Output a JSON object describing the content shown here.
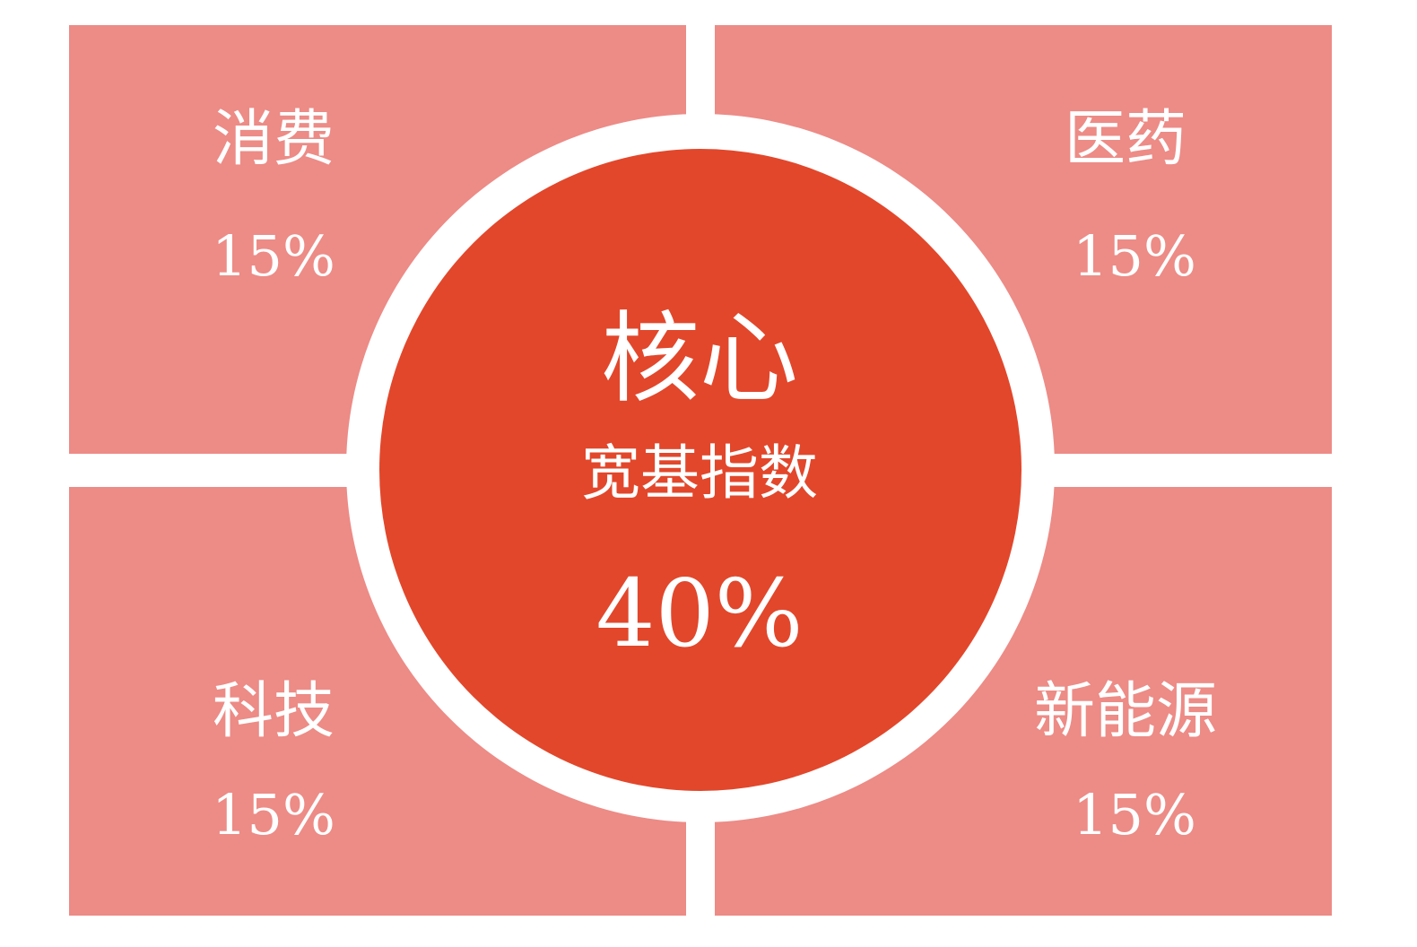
{
  "colors": {
    "sector_fill": "#ED8B86",
    "core_fill": "#E2472B",
    "ring": "#FFFFFF",
    "text": "#FFFFFF"
  },
  "core": {
    "title": "核心",
    "subtitle": "宽基指数",
    "value": "40%"
  },
  "sectors": [
    {
      "label": "消费",
      "value": "15%",
      "share": 15
    },
    {
      "label": "医药",
      "value": "15%",
      "share": 15
    },
    {
      "label": "科技",
      "value": "15%",
      "share": 15
    },
    {
      "label": "新能源",
      "value": "15%",
      "share": 15
    }
  ]
}
